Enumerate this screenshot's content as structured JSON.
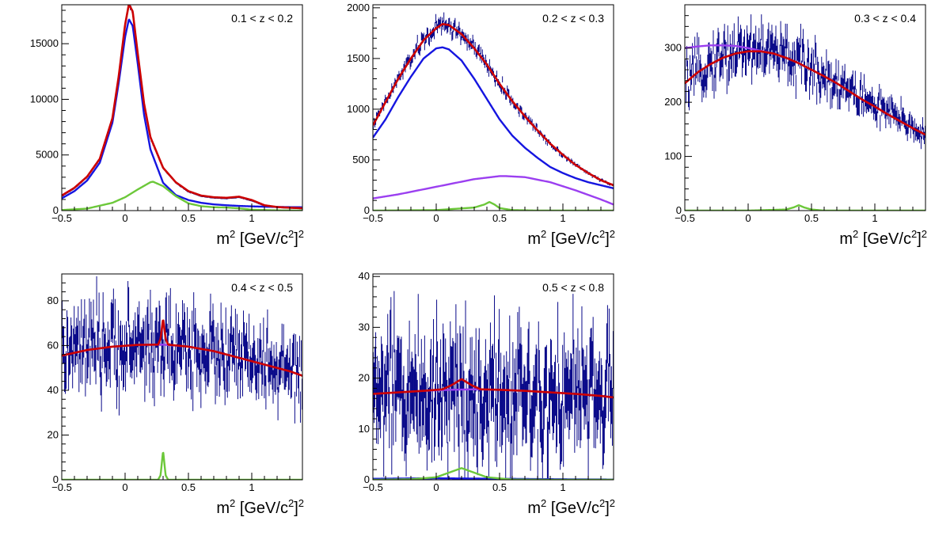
{
  "colors": {
    "data": "#0a0a8a",
    "total_fit": "#cc0000",
    "blue_component": "#1515e0",
    "purple_component": "#9b3ff0",
    "green_component": "#6cc83a",
    "frame": "#000000"
  },
  "chart_data": [
    {
      "type": "line",
      "annotation": "0.1 < z < 0.2",
      "xlabel_base": "m",
      "xlabel_sup": "2",
      "xlabel_mid": " [GeV/c",
      "xlabel_mid_sup": "2",
      "xlabel_end": "]",
      "xlabel_end_sup": "2",
      "xlim": [
        -0.5,
        1.4
      ],
      "ylim": [
        0,
        18500
      ],
      "xticks": [
        -0.5,
        0,
        0.5,
        1
      ],
      "xtick_labels": [
        "−0.5",
        "0",
        "0.5",
        "1"
      ],
      "yticks": [
        0,
        5000,
        10000,
        15000
      ],
      "ytick_labels": [
        "0",
        "5000",
        "10000",
        "15000"
      ],
      "grid": false,
      "data_noise": 0.008,
      "series": [
        {
          "role": "data",
          "x": [
            -0.5,
            -0.4,
            -0.3,
            -0.2,
            -0.1,
            -0.05,
            0,
            0.03,
            0.06,
            0.1,
            0.15,
            0.2,
            0.3,
            0.4,
            0.5,
            0.6,
            0.7,
            0.8,
            0.9,
            1.0,
            1.1,
            1.2,
            1.3,
            1.4
          ],
          "values": [
            1300,
            2000,
            3000,
            4600,
            8200,
            12000,
            16600,
            18500,
            17800,
            14000,
            9500,
            6500,
            3800,
            2500,
            1700,
            1300,
            1150,
            1100,
            1200,
            900,
            450,
            300,
            250,
            200
          ]
        },
        {
          "role": "total_fit",
          "x": [
            -0.5,
            -0.4,
            -0.3,
            -0.2,
            -0.1,
            -0.05,
            0,
            0.03,
            0.06,
            0.1,
            0.15,
            0.2,
            0.3,
            0.4,
            0.5,
            0.6,
            0.7,
            0.8,
            0.9,
            1.0,
            1.1,
            1.2,
            1.3,
            1.4
          ],
          "values": [
            1350,
            2050,
            3050,
            4650,
            8300,
            12100,
            16700,
            18550,
            17900,
            14100,
            9600,
            6600,
            3850,
            2550,
            1750,
            1350,
            1200,
            1150,
            1250,
            950,
            480,
            320,
            260,
            210
          ]
        },
        {
          "role": "blue_component",
          "x": [
            -0.5,
            -0.4,
            -0.3,
            -0.2,
            -0.1,
            -0.05,
            0,
            0.03,
            0.06,
            0.1,
            0.15,
            0.2,
            0.3,
            0.4,
            0.5,
            0.6,
            0.7,
            0.8,
            0.9,
            1.0,
            1.1,
            1.2,
            1.3,
            1.4
          ],
          "values": [
            1100,
            1750,
            2700,
            4300,
            7900,
            11500,
            15600,
            17200,
            16600,
            13200,
            8600,
            5500,
            2500,
            1400,
            950,
            700,
            560,
            480,
            420,
            380,
            350,
            330,
            310,
            300
          ]
        },
        {
          "role": "green_component",
          "x": [
            -0.5,
            -0.3,
            -0.1,
            0,
            0.1,
            0.2,
            0.22,
            0.3,
            0.4,
            0.5,
            0.6,
            0.7,
            0.8,
            0.9,
            1.0,
            1.2,
            1.4
          ],
          "values": [
            50,
            180,
            700,
            1200,
            1900,
            2550,
            2600,
            2200,
            1300,
            650,
            400,
            300,
            280,
            200,
            80,
            20,
            0
          ]
        }
      ]
    },
    {
      "type": "line",
      "annotation": "0.2 < z < 0.3",
      "xlabel_base": "m",
      "xlabel_sup": "2",
      "xlabel_mid": " [GeV/c",
      "xlabel_mid_sup": "2",
      "xlabel_end": "]",
      "xlabel_end_sup": "2",
      "xlim": [
        -0.5,
        1.4
      ],
      "ylim": [
        0,
        2030
      ],
      "xticks": [
        -0.5,
        0,
        0.5,
        1
      ],
      "xtick_labels": [
        "−0.5",
        "0",
        "0.5",
        "1"
      ],
      "yticks": [
        0,
        500,
        1000,
        1500,
        2000
      ],
      "ytick_labels": [
        "0",
        "500",
        "1000",
        "1500",
        "2000"
      ],
      "grid": false,
      "data_noise": 0.025,
      "series": [
        {
          "role": "data",
          "x": [
            -0.5,
            -0.4,
            -0.3,
            -0.2,
            -0.1,
            0,
            0.05,
            0.1,
            0.2,
            0.3,
            0.4,
            0.5,
            0.6,
            0.7,
            0.8,
            0.9,
            1.0,
            1.1,
            1.2,
            1.3,
            1.4
          ],
          "values": [
            840,
            1070,
            1300,
            1500,
            1680,
            1800,
            1830,
            1820,
            1740,
            1600,
            1440,
            1250,
            1080,
            930,
            790,
            660,
            550,
            450,
            370,
            300,
            250
          ]
        },
        {
          "role": "total_fit",
          "x": [
            -0.5,
            -0.4,
            -0.3,
            -0.2,
            -0.1,
            0,
            0.05,
            0.1,
            0.2,
            0.3,
            0.4,
            0.5,
            0.6,
            0.7,
            0.8,
            0.9,
            1.0,
            1.1,
            1.2,
            1.3,
            1.4
          ],
          "values": [
            840,
            1070,
            1300,
            1500,
            1680,
            1800,
            1840,
            1830,
            1740,
            1600,
            1440,
            1250,
            1080,
            930,
            790,
            660,
            550,
            450,
            370,
            300,
            250
          ]
        },
        {
          "role": "blue_component",
          "x": [
            -0.5,
            -0.4,
            -0.3,
            -0.2,
            -0.1,
            0,
            0.05,
            0.1,
            0.2,
            0.3,
            0.4,
            0.5,
            0.6,
            0.7,
            0.8,
            0.9,
            1.0,
            1.1,
            1.2,
            1.3,
            1.4
          ],
          "values": [
            720,
            900,
            1120,
            1320,
            1500,
            1600,
            1610,
            1590,
            1480,
            1300,
            1100,
            900,
            740,
            620,
            520,
            430,
            370,
            320,
            280,
            250,
            220
          ]
        },
        {
          "role": "purple_component",
          "x": [
            -0.5,
            -0.3,
            -0.1,
            0.1,
            0.3,
            0.5,
            0.55,
            0.7,
            0.9,
            1.1,
            1.3,
            1.4
          ],
          "values": [
            120,
            160,
            210,
            260,
            310,
            340,
            340,
            330,
            280,
            200,
            110,
            60
          ]
        },
        {
          "role": "green_component",
          "x": [
            -0.5,
            0,
            0.3,
            0.38,
            0.42,
            0.46,
            0.5,
            0.6,
            0.8,
            1.0,
            1.4
          ],
          "values": [
            0,
            5,
            30,
            60,
            85,
            60,
            25,
            5,
            0,
            0,
            0
          ]
        }
      ]
    },
    {
      "type": "line",
      "annotation": "0.3 < z < 0.4",
      "xlabel_base": "m",
      "xlabel_sup": "2",
      "xlabel_mid": " [GeV/c",
      "xlabel_mid_sup": "2",
      "xlabel_end": "]",
      "xlabel_end_sup": "2",
      "xlim": [
        -0.5,
        1.4
      ],
      "ylim": [
        0,
        380
      ],
      "xticks": [
        -0.5,
        0,
        0.5,
        1
      ],
      "xtick_labels": [
        "−0.5",
        "0",
        "0.5",
        "1"
      ],
      "yticks": [
        0,
        100,
        200,
        300
      ],
      "ytick_labels": [
        "0",
        "100",
        "200",
        "300"
      ],
      "grid": false,
      "data_noise": 0.08,
      "series": [
        {
          "role": "data",
          "x": [
            -0.5,
            -0.4,
            -0.3,
            -0.2,
            -0.1,
            0,
            0.1,
            0.2,
            0.3,
            0.4,
            0.5,
            0.6,
            0.7,
            0.8,
            0.9,
            1.0,
            1.1,
            1.2,
            1.3,
            1.4
          ],
          "values": [
            235,
            255,
            272,
            285,
            295,
            300,
            298,
            292,
            285,
            275,
            262,
            250,
            237,
            222,
            208,
            195,
            180,
            168,
            155,
            140
          ]
        },
        {
          "role": "total_fit",
          "x": [
            -0.5,
            -0.4,
            -0.3,
            -0.2,
            -0.1,
            0,
            0.1,
            0.2,
            0.3,
            0.4,
            0.5,
            0.6,
            0.7,
            0.8,
            0.9,
            1.0,
            1.1,
            1.2,
            1.3,
            1.4
          ],
          "values": [
            235,
            255,
            270,
            282,
            290,
            294,
            294,
            290,
            282,
            272,
            260,
            248,
            235,
            220,
            205,
            192,
            178,
            165,
            152,
            140
          ]
        },
        {
          "role": "purple_component",
          "x": [
            -0.5,
            -0.4,
            -0.3,
            -0.2,
            -0.1,
            0,
            0.1,
            0.2,
            0.3,
            0.4,
            0.5,
            0.6,
            0.7,
            0.8,
            0.9,
            1.0,
            1.1,
            1.2,
            1.3,
            1.4
          ],
          "values": [
            300,
            303,
            305,
            305,
            304,
            300,
            295,
            290,
            282,
            272,
            260,
            248,
            235,
            220,
            205,
            192,
            178,
            165,
            152,
            140
          ]
        },
        {
          "role": "green_component",
          "x": [
            -0.5,
            0,
            0.3,
            0.36,
            0.4,
            0.44,
            0.5,
            0.6,
            1.0,
            1.4
          ],
          "values": [
            0,
            0,
            2,
            6,
            10,
            6,
            2,
            0,
            0,
            0
          ]
        }
      ]
    },
    {
      "type": "line",
      "annotation": "0.4 < z < 0.5",
      "xlabel_base": "m",
      "xlabel_sup": "2",
      "xlabel_mid": " [GeV/c",
      "xlabel_mid_sup": "2",
      "xlabel_end": "]",
      "xlabel_end_sup": "2",
      "xlim": [
        -0.5,
        1.4
      ],
      "ylim": [
        0,
        92
      ],
      "xticks": [
        -0.5,
        0,
        0.5,
        1
      ],
      "xtick_labels": [
        "−0.5",
        "0",
        "0.5",
        "1"
      ],
      "yticks": [
        0,
        20,
        40,
        60,
        80
      ],
      "ytick_labels": [
        "0",
        "20",
        "40",
        "60",
        "80"
      ],
      "grid": false,
      "data_noise": 0.15,
      "series": [
        {
          "role": "data",
          "x": [
            -0.5,
            -0.3,
            -0.1,
            0.1,
            0.3,
            0.5,
            0.7,
            0.9,
            1.1,
            1.3,
            1.4
          ],
          "values": [
            56,
            58,
            59,
            60,
            60,
            59,
            57,
            54,
            51,
            48,
            46
          ]
        },
        {
          "role": "total_fit",
          "x": [
            -0.5,
            -0.3,
            -0.1,
            0.1,
            0.26,
            0.28,
            0.3,
            0.32,
            0.34,
            0.5,
            0.7,
            0.9,
            1.1,
            1.3,
            1.4
          ],
          "values": [
            55.5,
            58,
            59.5,
            60.3,
            60.4,
            63,
            72,
            63,
            60.4,
            59.5,
            57.5,
            54.5,
            51.5,
            48.5,
            46.5
          ]
        },
        {
          "role": "purple_component",
          "x": [
            -0.5,
            -0.3,
            -0.1,
            0.1,
            0.3,
            0.5,
            0.7,
            0.9,
            1.1,
            1.3,
            1.4
          ],
          "values": [
            55.5,
            58,
            59.5,
            60.3,
            60.4,
            59.5,
            57.5,
            54.5,
            51.5,
            48.5,
            46.5
          ]
        },
        {
          "role": "green_component",
          "x": [
            -0.5,
            0.26,
            0.28,
            0.3,
            0.32,
            0.34,
            1.4
          ],
          "values": [
            0,
            0,
            2,
            13,
            2,
            0,
            0
          ]
        }
      ]
    },
    {
      "type": "line",
      "annotation": "0.5 < z < 0.8",
      "xlabel_base": "m",
      "xlabel_sup": "2",
      "xlabel_mid": " [GeV/c",
      "xlabel_mid_sup": "2",
      "xlabel_end": "]",
      "xlabel_end_sup": "2",
      "xlim": [
        -0.5,
        1.4
      ],
      "ylim": [
        0,
        40.5
      ],
      "xticks": [
        -0.5,
        0,
        0.5,
        1
      ],
      "xtick_labels": [
        "−0.5",
        "0",
        "0.5",
        "1"
      ],
      "yticks": [
        0,
        10,
        20,
        30,
        40
      ],
      "ytick_labels": [
        "0",
        "10",
        "20",
        "30",
        "40"
      ],
      "grid": false,
      "data_noise": 0.35,
      "series": [
        {
          "role": "data",
          "x": [
            -0.5,
            -0.3,
            -0.1,
            0.1,
            0.3,
            0.5,
            0.7,
            0.9,
            1.1,
            1.3,
            1.4
          ],
          "values": [
            17,
            17.3,
            17.6,
            17.8,
            17.8,
            17.7,
            17.5,
            17.2,
            16.9,
            16.5,
            16.2
          ]
        },
        {
          "role": "total_fit",
          "x": [
            -0.5,
            -0.3,
            -0.1,
            0.05,
            0.12,
            0.2,
            0.28,
            0.35,
            0.5,
            0.7,
            0.9,
            1.1,
            1.3,
            1.4
          ],
          "values": [
            16.9,
            17.2,
            17.5,
            17.8,
            18.6,
            19.8,
            18.6,
            17.8,
            17.7,
            17.5,
            17.2,
            16.9,
            16.5,
            16.2
          ]
        },
        {
          "role": "purple_component",
          "x": [
            -0.5,
            -0.3,
            -0.1,
            0.1,
            0.3,
            0.5,
            0.7,
            0.9,
            1.1,
            1.3,
            1.4
          ],
          "values": [
            16.9,
            17.2,
            17.5,
            17.7,
            17.8,
            17.7,
            17.5,
            17.2,
            16.9,
            16.5,
            16.2
          ]
        },
        {
          "role": "blue_component",
          "x": [
            -0.5,
            0,
            0.5,
            1.0,
            1.4
          ],
          "values": [
            0.2,
            0.3,
            0.2,
            0.1,
            0.05
          ]
        },
        {
          "role": "green_component",
          "x": [
            -0.5,
            -0.2,
            0,
            0.1,
            0.2,
            0.3,
            0.4,
            0.6,
            1.0,
            1.4
          ],
          "values": [
            0,
            0.1,
            0.5,
            1.4,
            2.3,
            1.4,
            0.5,
            0.05,
            0,
            0
          ]
        }
      ]
    }
  ]
}
